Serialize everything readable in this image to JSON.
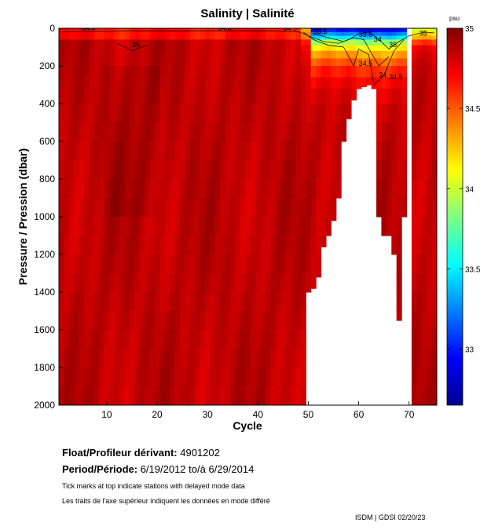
{
  "chart_data": {
    "type": "heatmap",
    "title": "Salinity | Salinité",
    "xlabel": "Cycle",
    "ylabel": "Pressure / Pression (dbar)",
    "xlim": [
      1,
      75
    ],
    "ylim": [
      2000,
      0
    ],
    "x_ticks": [
      10,
      20,
      30,
      40,
      50,
      60,
      70
    ],
    "y_ticks": [
      0,
      200,
      400,
      600,
      800,
      1000,
      1200,
      1400,
      1600,
      1800,
      2000
    ],
    "colorbar": {
      "label": "psu",
      "range": [
        32.65,
        35.0
      ],
      "ticks": [
        33,
        33.5,
        34,
        34.5,
        35
      ],
      "tick_labels": [
        "33",
        "33.5",
        "34",
        "34.5",
        "35"
      ]
    },
    "max_pressure_by_cycle": {
      "cycles": [
        1,
        2,
        3,
        4,
        5,
        6,
        7,
        8,
        9,
        10,
        11,
        12,
        13,
        14,
        15,
        16,
        17,
        18,
        19,
        20,
        21,
        22,
        23,
        24,
        25,
        26,
        27,
        28,
        29,
        30,
        31,
        32,
        33,
        34,
        35,
        36,
        37,
        38,
        39,
        40,
        41,
        42,
        43,
        44,
        45,
        46,
        47,
        48,
        49,
        50,
        51,
        52,
        53,
        54,
        55,
        56,
        57,
        58,
        59,
        60,
        61,
        62,
        63,
        64,
        65,
        66,
        67,
        68,
        69,
        70,
        71,
        72,
        73,
        74,
        75
      ],
      "max_pressure": [
        2000,
        2000,
        2000,
        2000,
        2000,
        2000,
        2000,
        2000,
        2000,
        2000,
        2000,
        2000,
        2000,
        2000,
        2000,
        2000,
        2000,
        2000,
        2000,
        2000,
        2000,
        2000,
        2000,
        2000,
        2000,
        2000,
        2000,
        2000,
        2000,
        2000,
        2000,
        2000,
        2000,
        2000,
        2000,
        2000,
        2000,
        2000,
        2000,
        2000,
        2000,
        2000,
        2000,
        2000,
        2000,
        2000,
        2000,
        2000,
        2000,
        1400,
        1380,
        1320,
        1160,
        1100,
        1020,
        900,
        600,
        480,
        380,
        320,
        310,
        300,
        320,
        1000,
        1100,
        1100,
        1200,
        1550,
        1000,
        0,
        2000,
        2000,
        2000,
        2000,
        2000
      ]
    },
    "contours": [
      {
        "level": 34.5,
        "labels": [
          "34.5",
          "34.5",
          "34.5",
          "34.5",
          "34.5"
        ]
      },
      {
        "level": 34,
        "labels": [
          "34",
          "34"
        ]
      },
      {
        "level": 33.5,
        "labels": [
          "33.5",
          "33.5"
        ]
      },
      {
        "level": 35,
        "labels": [
          "35",
          "35",
          "35"
        ]
      }
    ],
    "surface_colors": {
      "low_salinity": "#1e3cff",
      "mid_salinity": "#ffd500",
      "high_salinity": "#c80000",
      "missing": "#ffffff"
    }
  },
  "float_label": "Float/Profileur dérivant:",
  "float_id": "4901202",
  "period_label": "Period/Période:",
  "period_start": "6/19/2012",
  "period_sep": "to/à",
  "period_end": "6/29/2014",
  "note_en": "Tick marks at top indicate stations with delayed mode data",
  "note_fr": "Les traits de l'axe supérieur indiquent les données en mode différé",
  "footer": "ISDM | GDSI  02/20/23"
}
